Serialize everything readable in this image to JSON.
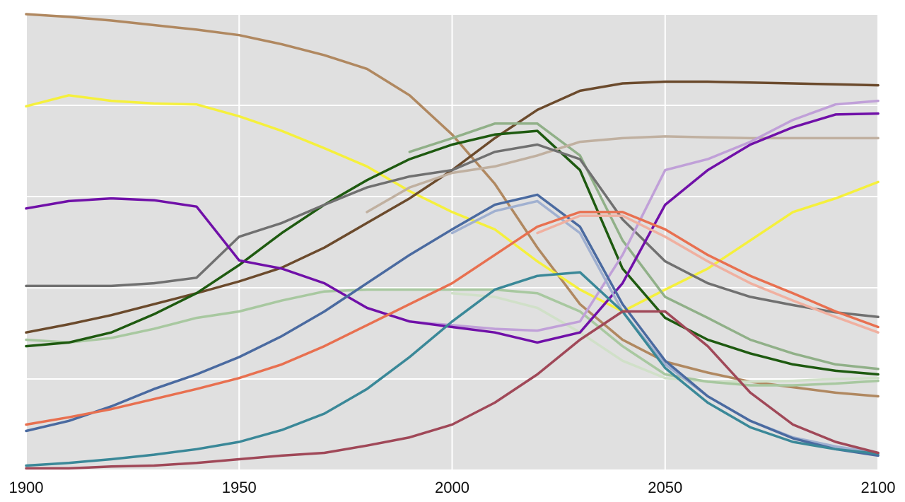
{
  "chart_data": {
    "type": "line",
    "x": [
      1900,
      1910,
      1920,
      1930,
      1940,
      1950,
      1960,
      1970,
      1980,
      1990,
      2000,
      2010,
      2020,
      2030,
      2040,
      2050,
      2060,
      2070,
      2080,
      2090,
      2100
    ],
    "xlim": [
      1900,
      2100
    ],
    "xticks": [
      1900,
      1950,
      2000,
      2050,
      2100
    ],
    "ylim": [
      0,
      5
    ],
    "ygrid": [
      0,
      1,
      2,
      3,
      4,
      5
    ],
    "grid": true,
    "series": [
      {
        "color": "#b08860",
        "values": [
          5.0,
          4.97,
          4.93,
          4.88,
          4.83,
          4.77,
          4.67,
          4.55,
          4.4,
          4.11,
          3.68,
          3.14,
          2.44,
          1.82,
          1.43,
          1.19,
          1.07,
          0.97,
          0.91,
          0.85,
          0.81
        ]
      },
      {
        "color": "#f5f03c",
        "values": [
          3.99,
          4.11,
          4.05,
          4.02,
          4.01,
          3.88,
          3.72,
          3.53,
          3.33,
          3.06,
          2.83,
          2.64,
          2.29,
          1.98,
          1.74,
          1.98,
          2.21,
          2.52,
          2.83,
          2.98,
          3.16
        ]
      },
      {
        "color": "#6b4a2c",
        "values": [
          1.51,
          1.6,
          1.7,
          1.82,
          1.94,
          2.07,
          2.22,
          2.44,
          2.71,
          2.98,
          3.29,
          3.64,
          3.95,
          4.16,
          4.24,
          4.26,
          4.26,
          4.25,
          4.24,
          4.23,
          4.22
        ]
      },
      {
        "color": "#d0e0c8",
        "values": [
          null,
          null,
          null,
          null,
          null,
          null,
          null,
          null,
          null,
          null,
          1.94,
          1.9,
          1.78,
          1.51,
          1.2,
          1.01,
          0.97,
          0.97,
          0.98,
          1.0,
          1.01
        ]
      },
      {
        "color": "#a8c8a0",
        "values": [
          1.43,
          1.4,
          1.45,
          1.55,
          1.67,
          1.74,
          1.86,
          1.96,
          1.98,
          1.98,
          1.98,
          1.98,
          1.94,
          1.74,
          1.36,
          1.05,
          0.97,
          0.93,
          0.93,
          0.95,
          0.98
        ]
      },
      {
        "color": "#90b088",
        "values": [
          null,
          null,
          null,
          null,
          null,
          null,
          null,
          null,
          null,
          3.49,
          3.64,
          3.8,
          3.8,
          3.45,
          2.52,
          1.9,
          1.67,
          1.43,
          1.28,
          1.16,
          1.11
        ]
      },
      {
        "color": "#1e5a10",
        "values": [
          1.36,
          1.4,
          1.51,
          1.71,
          1.94,
          2.25,
          2.6,
          2.91,
          3.18,
          3.41,
          3.57,
          3.68,
          3.72,
          3.29,
          2.21,
          1.67,
          1.43,
          1.28,
          1.16,
          1.09,
          1.05
        ]
      },
      {
        "color": "#c0b0a0",
        "values": [
          null,
          null,
          null,
          null,
          null,
          null,
          null,
          null,
          2.83,
          3.1,
          3.26,
          3.33,
          3.45,
          3.6,
          3.64,
          3.66,
          3.65,
          3.64,
          3.64,
          3.64,
          3.64
        ]
      },
      {
        "color": "#707070",
        "values": [
          2.02,
          2.02,
          2.02,
          2.05,
          2.11,
          2.56,
          2.71,
          2.91,
          3.1,
          3.22,
          3.29,
          3.49,
          3.57,
          3.41,
          2.75,
          2.29,
          2.05,
          1.9,
          1.81,
          1.73,
          1.68
        ]
      },
      {
        "color": "#c0a0d8",
        "values": [
          null,
          null,
          null,
          null,
          null,
          null,
          null,
          null,
          null,
          1.63,
          1.59,
          1.55,
          1.53,
          1.63,
          2.36,
          3.29,
          3.41,
          3.6,
          3.84,
          4.01,
          4.05
        ]
      },
      {
        "color": "#7010a8",
        "values": [
          2.87,
          2.95,
          2.98,
          2.96,
          2.89,
          2.3,
          2.21,
          2.05,
          1.78,
          1.63,
          1.57,
          1.51,
          1.4,
          1.51,
          2.05,
          2.91,
          3.29,
          3.57,
          3.76,
          3.9,
          3.91
        ]
      },
      {
        "color": "#a0b0d0",
        "values": [
          null,
          null,
          null,
          null,
          null,
          null,
          null,
          null,
          null,
          null,
          2.6,
          2.84,
          2.95,
          2.6,
          1.74,
          1.16,
          0.81,
          0.54,
          0.36,
          0.26,
          0.19
        ]
      },
      {
        "color": "#4a6aa0",
        "values": [
          0.43,
          0.54,
          0.7,
          0.89,
          1.05,
          1.24,
          1.47,
          1.74,
          2.05,
          2.36,
          2.64,
          2.91,
          3.02,
          2.67,
          1.82,
          1.2,
          0.81,
          0.54,
          0.35,
          0.23,
          0.16
        ]
      },
      {
        "color": "#f0b0a0",
        "values": [
          null,
          null,
          null,
          null,
          null,
          null,
          null,
          null,
          null,
          null,
          null,
          null,
          2.6,
          2.79,
          2.79,
          2.56,
          2.29,
          2.05,
          1.86,
          1.68,
          1.51
        ]
      },
      {
        "color": "#e87050",
        "values": [
          0.5,
          0.58,
          0.67,
          0.78,
          0.89,
          1.01,
          1.16,
          1.36,
          1.59,
          1.82,
          2.05,
          2.36,
          2.67,
          2.83,
          2.83,
          2.64,
          2.36,
          2.13,
          1.94,
          1.74,
          1.57
        ]
      },
      {
        "color": "#3a8898",
        "values": [
          0.05,
          0.08,
          0.12,
          0.17,
          0.23,
          0.31,
          0.44,
          0.62,
          0.89,
          1.24,
          1.63,
          1.98,
          2.13,
          2.17,
          1.74,
          1.12,
          0.74,
          0.47,
          0.31,
          0.23,
          0.18
        ]
      },
      {
        "color": "#a04858",
        "values": [
          0.02,
          0.02,
          0.04,
          0.05,
          0.08,
          0.12,
          0.16,
          0.19,
          0.27,
          0.36,
          0.5,
          0.74,
          1.05,
          1.43,
          1.74,
          1.74,
          1.36,
          0.85,
          0.5,
          0.31,
          0.19
        ]
      }
    ]
  }
}
